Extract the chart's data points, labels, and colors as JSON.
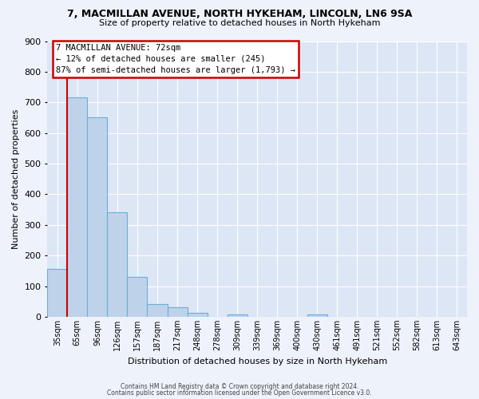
{
  "title1": "7, MACMILLAN AVENUE, NORTH HYKEHAM, LINCOLN, LN6 9SA",
  "title2": "Size of property relative to detached houses in North Hykeham",
  "xlabel": "Distribution of detached houses by size in North Hykeham",
  "ylabel": "Number of detached properties",
  "bin_labels": [
    "35sqm",
    "65sqm",
    "96sqm",
    "126sqm",
    "157sqm",
    "187sqm",
    "217sqm",
    "248sqm",
    "278sqm",
    "309sqm",
    "339sqm",
    "369sqm",
    "400sqm",
    "430sqm",
    "461sqm",
    "491sqm",
    "521sqm",
    "552sqm",
    "582sqm",
    "613sqm",
    "643sqm"
  ],
  "bin_values": [
    155,
    717,
    650,
    340,
    130,
    42,
    30,
    13,
    0,
    8,
    0,
    0,
    0,
    8,
    0,
    0,
    0,
    0,
    0,
    0,
    0
  ],
  "bar_color": "#bed3ea",
  "bar_edge_color": "#6baed6",
  "annotation_title": "7 MACMILLAN AVENUE: 72sqm",
  "annotation_line1": "← 12% of detached houses are smaller (245)",
  "annotation_line2": "87% of semi-detached houses are larger (1,793) →",
  "annotation_box_color": "#ffffff",
  "annotation_box_edge": "#cc0000",
  "red_line_color": "#cc0000",
  "ylim": [
    0,
    900
  ],
  "yticks": [
    0,
    100,
    200,
    300,
    400,
    500,
    600,
    700,
    800,
    900
  ],
  "footer1": "Contains HM Land Registry data © Crown copyright and database right 2024.",
  "footer2": "Contains public sector information licensed under the Open Government Licence v3.0.",
  "bg_color": "#eef2fb",
  "plot_bg_color": "#dde6f5"
}
